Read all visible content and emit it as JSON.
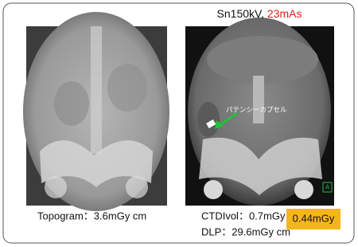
{
  "title": {
    "settings": "Sn150kV, ",
    "dose": "23mAs"
  },
  "ct_image": {
    "annotation": "パテンシーカプセル",
    "orientation_marker": "A"
  },
  "topogram": {
    "caption": "Topogram：3.6mGy cm"
  },
  "ct_dose": {
    "ctdivol": "CTDIvol：0.7mGy",
    "dlp": "DLP：29.6mGy cm",
    "effective_dose": "0.44mGy"
  }
}
